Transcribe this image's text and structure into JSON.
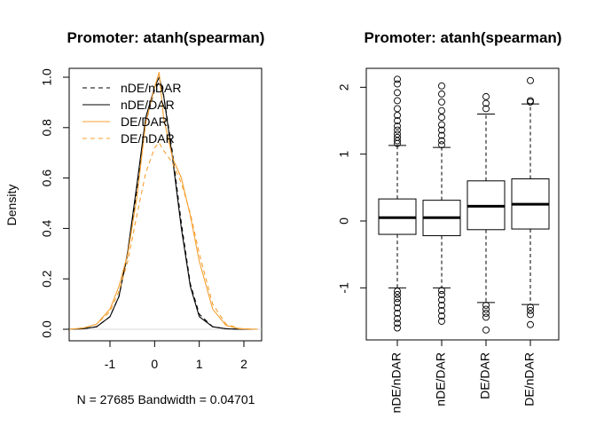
{
  "chart_data": [
    {
      "type": "line",
      "title": "Promoter: atanh(spearman)",
      "xlabel": "N = 27685   Bandwidth = 0.04701",
      "ylabel": "Density",
      "xlim": [
        -1.9,
        2.3
      ],
      "ylim": [
        0,
        1.0
      ],
      "xticks": [
        "-1",
        "0",
        "1",
        "2"
      ],
      "yticks": [
        "0.0",
        "0.2",
        "0.4",
        "0.6",
        "0.8",
        "1.0"
      ],
      "legend_position": "top-left",
      "series": [
        {
          "name": "nDE/nDAR",
          "color": "#000000",
          "dash": "dashed",
          "x": [
            -1.9,
            -1.6,
            -1.3,
            -1.0,
            -0.8,
            -0.6,
            -0.4,
            -0.2,
            0.0,
            0.1,
            0.2,
            0.4,
            0.6,
            0.8,
            1.0,
            1.3,
            1.6,
            1.9,
            2.3
          ],
          "y": [
            0.0,
            0.002,
            0.01,
            0.05,
            0.13,
            0.3,
            0.55,
            0.82,
            0.95,
            0.98,
            0.93,
            0.7,
            0.42,
            0.18,
            0.06,
            0.01,
            0.002,
            0.0,
            0.0
          ]
        },
        {
          "name": "nDE/DAR",
          "color": "#000000",
          "dash": "solid",
          "x": [
            -1.9,
            -1.6,
            -1.3,
            -1.0,
            -0.8,
            -0.6,
            -0.4,
            -0.2,
            0.0,
            0.1,
            0.2,
            0.4,
            0.6,
            0.8,
            1.0,
            1.3,
            1.6,
            1.9,
            2.3
          ],
          "y": [
            0.0,
            0.002,
            0.01,
            0.05,
            0.13,
            0.31,
            0.57,
            0.84,
            0.96,
            1.0,
            0.93,
            0.68,
            0.4,
            0.17,
            0.05,
            0.01,
            0.002,
            0.0,
            0.0
          ]
        },
        {
          "name": "DE/DAR",
          "color": "#f5a030",
          "dash": "solid",
          "x": [
            -1.9,
            -1.6,
            -1.3,
            -1.0,
            -0.8,
            -0.6,
            -0.4,
            -0.2,
            0.0,
            0.1,
            0.2,
            0.4,
            0.6,
            0.8,
            1.0,
            1.3,
            1.6,
            1.9,
            2.3
          ],
          "y": [
            0.0,
            0.005,
            0.02,
            0.08,
            0.17,
            0.3,
            0.52,
            0.82,
            0.96,
            1.02,
            0.84,
            0.68,
            0.6,
            0.45,
            0.27,
            0.08,
            0.015,
            0.002,
            0.0
          ]
        },
        {
          "name": "DE/nDAR",
          "color": "#f5a030",
          "dash": "dashed",
          "x": [
            -1.9,
            -1.6,
            -1.3,
            -1.0,
            -0.8,
            -0.6,
            -0.4,
            -0.2,
            0.0,
            0.1,
            0.2,
            0.4,
            0.6,
            0.8,
            1.0,
            1.3,
            1.6,
            1.9,
            2.3
          ],
          "y": [
            0.0,
            0.005,
            0.02,
            0.07,
            0.15,
            0.27,
            0.45,
            0.62,
            0.72,
            0.74,
            0.71,
            0.66,
            0.58,
            0.46,
            0.3,
            0.1,
            0.02,
            0.003,
            0.0
          ]
        }
      ]
    },
    {
      "type": "boxplot",
      "title": "Promoter: atanh(spearman)",
      "ylim": [
        -1.75,
        2.35
      ],
      "yticks": [
        "-1",
        "0",
        "1",
        "2"
      ],
      "categories": [
        "nDE/nDAR",
        "nDE/DAR",
        "DE/DAR",
        "DE/nDAR"
      ],
      "boxes": [
        {
          "name": "nDE/nDAR",
          "whisker_low": -1.0,
          "q1": -0.2,
          "median": 0.05,
          "q3": 0.33,
          "whisker_high": 1.13,
          "outliers_high": [
            1.16,
            1.2,
            1.25,
            1.3,
            1.36,
            1.42,
            1.5,
            1.58,
            1.68,
            1.8,
            1.92,
            2.05,
            2.12
          ],
          "outliers_low": [
            -1.05,
            -1.1,
            -1.16,
            -1.22,
            -1.3,
            -1.38,
            -1.46,
            -1.53,
            -1.6
          ]
        },
        {
          "name": "nDE/DAR",
          "whisker_low": -1.0,
          "q1": -0.22,
          "median": 0.05,
          "q3": 0.31,
          "whisker_high": 1.1,
          "outliers_high": [
            1.14,
            1.2,
            1.28,
            1.36,
            1.44,
            1.55,
            1.65,
            1.78,
            1.9,
            2.02
          ],
          "outliers_low": [
            -1.04,
            -1.1,
            -1.18,
            -1.26,
            -1.34,
            -1.42,
            -1.5
          ]
        },
        {
          "name": "DE/DAR",
          "whisker_low": -1.22,
          "q1": -0.13,
          "median": 0.22,
          "q3": 0.6,
          "whisker_high": 1.6,
          "outliers_high": [
            1.68,
            1.76,
            1.86
          ],
          "outliers_low": [
            -1.26,
            -1.32,
            -1.38,
            -1.44,
            -1.63
          ]
        },
        {
          "name": "DE/nDAR",
          "whisker_low": -1.25,
          "q1": -0.12,
          "median": 0.25,
          "q3": 0.63,
          "whisker_high": 1.75,
          "outliers_high": [
            1.78,
            1.8,
            2.1
          ],
          "outliers_low": [
            -1.29,
            -1.34,
            -1.4,
            -1.55
          ]
        }
      ]
    }
  ]
}
